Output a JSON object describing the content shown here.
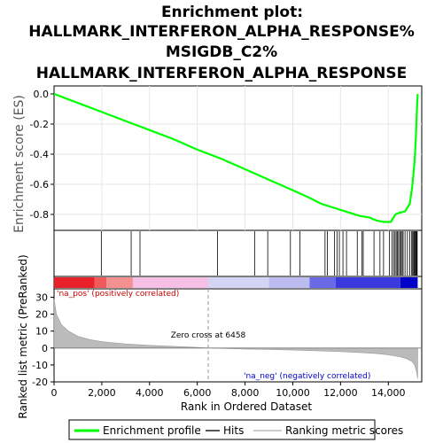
{
  "chart_data": {
    "type": "line",
    "title_lines": [
      "Enrichment plot:",
      "HALLMARK_INTERFERON_ALPHA_RESPONSE%",
      "MSIGDB_C2%",
      "HALLMARK_INTERFERON_ALPHA_RESPONSE"
    ],
    "es_ylabel": "Enrichment score (ES)",
    "metric_ylabel": "Ranked list metric (PreRanked)",
    "xlabel": "Rank in Ordered Dataset",
    "xlim": [
      0,
      15400
    ],
    "x_ticks": [
      0,
      2000,
      4000,
      6000,
      8000,
      10000,
      12000,
      14000
    ],
    "x_tick_labels": [
      "0",
      "2,000",
      "4,000",
      "6,000",
      "8,000",
      "10,000",
      "12,000",
      "14,000"
    ],
    "es_ylim": [
      -0.9,
      0.0
    ],
    "es_ticks": [
      0.0,
      -0.2,
      -0.4,
      -0.6,
      -0.8
    ],
    "es_tick_labels": [
      "0.0",
      "-0.2",
      "-0.4",
      "-0.6",
      "-0.8"
    ],
    "metric_ylim": [
      -20,
      35
    ],
    "metric_ticks": [
      30,
      20,
      10,
      0,
      -10,
      -20
    ],
    "metric_tick_labels": [
      "30",
      "20",
      "10",
      "0",
      "-10",
      "-20"
    ],
    "grid": true,
    "enrichment_profile": {
      "x": [
        0,
        1000,
        2000,
        3000,
        4000,
        5000,
        6000,
        7000,
        8000,
        9000,
        10000,
        10700,
        11200,
        11600,
        12000,
        12400,
        12800,
        13200,
        13500,
        13800,
        14100,
        14300,
        14450,
        14700,
        14900,
        15000,
        15100,
        15150,
        15200,
        15230
      ],
      "es": [
        0.0,
        -0.06,
        -0.12,
        -0.18,
        -0.24,
        -0.3,
        -0.37,
        -0.43,
        -0.5,
        -0.57,
        -0.64,
        -0.69,
        -0.73,
        -0.75,
        -0.77,
        -0.79,
        -0.81,
        -0.82,
        -0.84,
        -0.85,
        -0.85,
        -0.8,
        -0.79,
        -0.78,
        -0.73,
        -0.62,
        -0.45,
        -0.3,
        -0.1,
        0.0
      ]
    },
    "hits": [
      1980,
      3230,
      3600,
      6850,
      8400,
      8950,
      9900,
      10300,
      11350,
      11450,
      11750,
      11850,
      11950,
      12100,
      12250,
      12700,
      12900,
      12950,
      13400,
      13650,
      13800,
      14050,
      14150,
      14220,
      14280,
      14330,
      14380,
      14430,
      14480,
      14530,
      14580,
      14620,
      14700,
      14800,
      14900,
      14980,
      15020,
      15060,
      15090,
      15120,
      15150,
      15180,
      15210
    ],
    "colorbar_segments": [
      {
        "start": 0,
        "end": 1700,
        "color": "#e8202a"
      },
      {
        "start": 1700,
        "end": 2200,
        "color": "#f05a5a"
      },
      {
        "start": 2200,
        "end": 3300,
        "color": "#f39090"
      },
      {
        "start": 3300,
        "end": 6458,
        "color": "#f6c0e6"
      },
      {
        "start": 6458,
        "end": 9000,
        "color": "#d4d4f4"
      },
      {
        "start": 9000,
        "end": 10700,
        "color": "#bcbcf0"
      },
      {
        "start": 10700,
        "end": 11800,
        "color": "#6a6ae6"
      },
      {
        "start": 11800,
        "end": 14500,
        "color": "#3a3adc"
      },
      {
        "start": 14500,
        "end": 15230,
        "color": "#0000c8"
      }
    ],
    "metric_profile": {
      "x": [
        0,
        100,
        300,
        600,
        1000,
        1500,
        2000,
        3000,
        4000,
        5000,
        6000,
        6458,
        7000,
        8000,
        9000,
        10000,
        11000,
        12000,
        13000,
        13500,
        14000,
        14500,
        14800,
        15000,
        15100,
        15180,
        15230
      ],
      "y": [
        29,
        20,
        14,
        10,
        7,
        5,
        3.8,
        2.4,
        1.6,
        1.0,
        0.4,
        0.0,
        -0.2,
        -0.6,
        -0.9,
        -1.2,
        -1.6,
        -2.1,
        -2.8,
        -3.3,
        -4.0,
        -5.2,
        -6.5,
        -8.0,
        -10.0,
        -14.0,
        -18.0
      ]
    },
    "zero_cross": 6458,
    "zero_cross_label": "Zero cross at 6458",
    "pos_label": "'na_pos' (positively correlated)",
    "neg_label": "'na_neg' (negatively correlated)",
    "legend": [
      "Enrichment profile",
      "Hits",
      "Ranking metric scores"
    ],
    "colors": {
      "enrichment": "#00ff00",
      "hits": "#000000",
      "metric_fill": "#bbbbbb",
      "grid": "#e6e6e6"
    }
  }
}
